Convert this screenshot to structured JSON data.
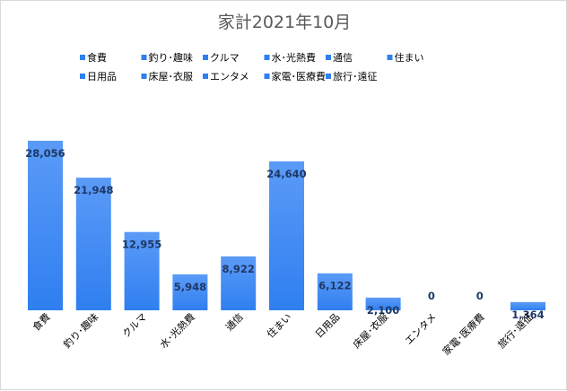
{
  "chart_data": {
    "type": "bar",
    "title": "家計2021年10月",
    "categories": [
      "食費",
      "釣り･趣味",
      "クルマ",
      "水･光熱費",
      "通信",
      "住まい",
      "日用品",
      "床屋･衣服",
      "エンタメ",
      "家電･医療費",
      "旅行･遠征"
    ],
    "value_labels": [
      "28,056",
      "21,948",
      "12,955",
      "5,948",
      "8,922",
      "24,640",
      "6,122",
      "2,100",
      "0",
      "0",
      "1,364"
    ],
    "values": [
      28056,
      21948,
      12955,
      5948,
      8922,
      24640,
      6122,
      2100,
      0,
      0,
      1364
    ],
    "legend": [
      "食費",
      "釣り･趣味",
      "クルマ",
      "水･光熱費",
      "通信",
      "住まい",
      "日用品",
      "床屋･衣服",
      "エンタメ",
      "家電･医療費",
      "旅行･遠征"
    ],
    "legend_placement": "top",
    "ylim": [
      0,
      30000
    ],
    "grid": false,
    "xlabel": "",
    "ylabel": "",
    "bar_color": "#2f7ff0",
    "bar_color_light": "#5b9bf7"
  }
}
